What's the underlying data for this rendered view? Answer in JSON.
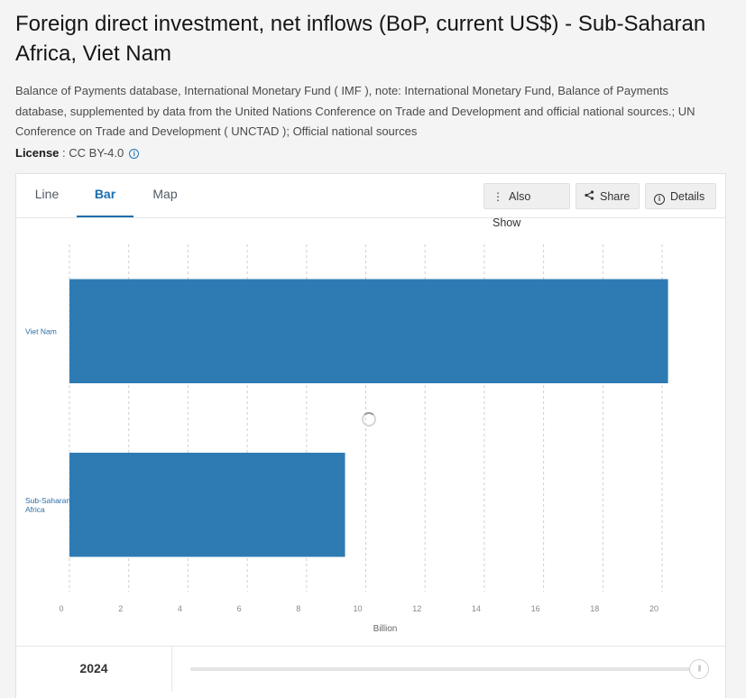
{
  "title": "Foreign direct investment, net inflows (BoP, current US$) - Sub-Saharan Africa, Viet Nam",
  "source": "Balance of Payments database, International Monetary Fund ( IMF ), note: International Monetary Fund, Balance of Payments database, supplemented by data from the United Nations Conference on Trade and Development and official national sources.; UN Conference on Trade and Development ( UNCTAD ); Official national sources",
  "license": {
    "label": "License",
    "value": "CC BY-4.0",
    "icon": "info-icon"
  },
  "tabs": [
    {
      "label": "Line",
      "active": false
    },
    {
      "label": "Bar",
      "active": true
    },
    {
      "label": "Map",
      "active": false
    }
  ],
  "actions": {
    "also_show": {
      "label": "Also Show",
      "icon": "more-vertical-icon"
    },
    "share": {
      "label": "Share",
      "icon": "share-icon"
    },
    "details": {
      "label": "Details",
      "icon": "info-icon"
    }
  },
  "footer": {
    "year": "2024",
    "slider_icon": "drag-handle-icon",
    "slider_position": 1.0
  },
  "colors": {
    "bar": "#2e7bb4",
    "accent": "#1a6eb0"
  },
  "chart_data": {
    "type": "bar",
    "orientation": "horizontal",
    "categories": [
      "Viet Nam",
      "Sub-Saharan Africa"
    ],
    "category_lines": [
      [
        "Viet Nam"
      ],
      [
        "Sub-Saharan",
        "Africa"
      ]
    ],
    "values": [
      20.2,
      9.3
    ],
    "xlabel": "Billion",
    "xlim": [
      0,
      20
    ],
    "xticks": [
      "0",
      "2",
      "4",
      "6",
      "8",
      "10",
      "12",
      "14",
      "16",
      "18",
      "20"
    ],
    "grid": true
  }
}
